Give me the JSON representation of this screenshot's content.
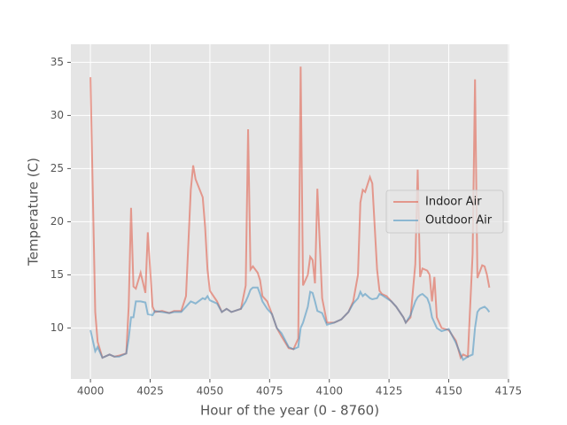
{
  "chart_data": {
    "type": "line",
    "x_label": "Hour of the year (0 - 8760)",
    "y_label": "Temperature (C)",
    "x": [
      4000,
      4002,
      4003,
      4005,
      4008,
      4010,
      4012,
      4015,
      4016,
      4017,
      4018,
      4019,
      4021,
      4023,
      4024,
      4026,
      4027,
      4030,
      4033,
      4035,
      4038,
      4040,
      4042,
      4043,
      4044,
      4047,
      4048,
      4049,
      4050,
      4053,
      4055,
      4057,
      4059,
      4063,
      4065,
      4066,
      4067,
      4068,
      4070,
      4071,
      4072,
      4074,
      4076,
      4078,
      4080,
      4083,
      4085,
      4087,
      4088,
      4089,
      4091,
      4092,
      4093,
      4094,
      4095,
      4097,
      4099,
      4102,
      4105,
      4108,
      4110,
      4112,
      4113,
      4114,
      4115,
      4117,
      4118,
      4120,
      4121,
      4122,
      4124,
      4126,
      4128,
      4131,
      4132,
      4134,
      4136,
      4137,
      4138,
      4139,
      4141,
      4142,
      4143,
      4144,
      4145,
      4147,
      4150,
      4153,
      4155,
      4156,
      4158,
      4160,
      4161,
      4162,
      4163,
      4164,
      4165,
      4166,
      4167
    ],
    "series": [
      {
        "name": "Indoor Air",
        "color": "#E24A33",
        "values": [
          33.6,
          11.5,
          8.7,
          7.2,
          7.5,
          7.3,
          7.4,
          7.6,
          12,
          21.3,
          13.9,
          13.7,
          15.2,
          13.3,
          19,
          12,
          11.5,
          11.6,
          11.4,
          11.6,
          11.6,
          13,
          23,
          25.3,
          24,
          22.3,
          19.5,
          15.5,
          13.5,
          12.5,
          11.5,
          11.8,
          11.5,
          11.8,
          14,
          28.7,
          15.5,
          15.8,
          15.2,
          14.5,
          13,
          12.5,
          11.3,
          10,
          9.2,
          8.1,
          8,
          9,
          34.6,
          14,
          15,
          16.7,
          16.4,
          14.2,
          23.1,
          12.8,
          10.5,
          10.5,
          10.8,
          11.5,
          12.5,
          15,
          21.8,
          23,
          22.8,
          24.2,
          23.6,
          15.5,
          13.5,
          13.2,
          13,
          12.5,
          12,
          11,
          10.5,
          11,
          16,
          24.9,
          14.8,
          15.6,
          15.4,
          15,
          12.5,
          14.8,
          11,
          10,
          9.8,
          8.8,
          7.2,
          7.5,
          7.3,
          17,
          33.4,
          14.7,
          15.3,
          15.9,
          15.8,
          15,
          13.8
        ]
      },
      {
        "name": "Outdoor Air",
        "color": "#348ABD",
        "values": [
          9.8,
          7.8,
          8.2,
          7.2,
          7.5,
          7.3,
          7.3,
          7.6,
          9,
          11,
          11,
          12.5,
          12.5,
          12.4,
          11.3,
          11.2,
          11.6,
          11.5,
          11.4,
          11.5,
          11.5,
          12,
          12.5,
          12.4,
          12.3,
          12.8,
          12.7,
          13,
          12.6,
          12.3,
          11.5,
          11.8,
          11.5,
          11.8,
          12.5,
          13,
          13.6,
          13.8,
          13.8,
          13.2,
          12.5,
          11.8,
          11.3,
          10,
          9.5,
          8.2,
          8,
          8.2,
          10,
          10.5,
          12,
          13.4,
          13.3,
          12.5,
          11.6,
          11.4,
          10.3,
          10.5,
          10.8,
          11.5,
          12.3,
          12.8,
          13.4,
          13,
          13.2,
          12.8,
          12.7,
          12.8,
          13.2,
          13.1,
          12.8,
          12.5,
          12,
          11,
          10.5,
          11.2,
          12.5,
          12.9,
          13.1,
          13.2,
          12.8,
          12.2,
          11,
          10.5,
          10,
          9.7,
          9.9,
          8.6,
          7.5,
          7,
          7.3,
          7.5,
          10,
          11.5,
          11.8,
          11.9,
          12,
          11.8,
          11.5
        ]
      }
    ],
    "xlim": [
      3991.8,
      4175.4
    ],
    "ylim": [
      5.2,
      36.7
    ],
    "xticks": [
      4000,
      4025,
      4050,
      4075,
      4100,
      4125,
      4150,
      4175
    ],
    "yticks": [
      10,
      15,
      20,
      25,
      30,
      35
    ],
    "grid": true,
    "legend": "center right"
  }
}
